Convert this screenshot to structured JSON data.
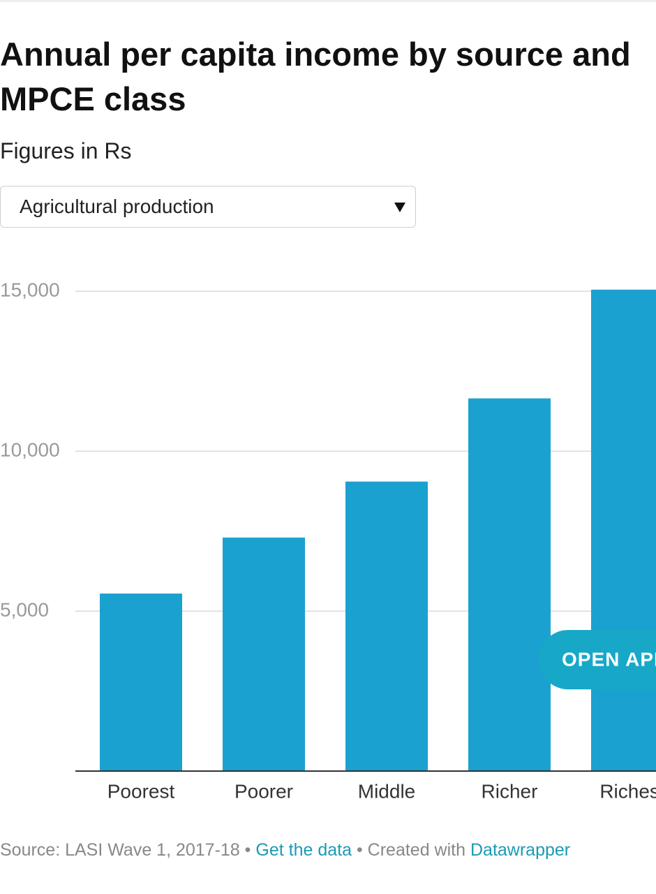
{
  "chart_data": {
    "type": "bar",
    "title": "Annual per capita income by source and MPCE class",
    "subtitle": "Figures in Rs",
    "dropdown": {
      "selected": "Agricultural production"
    },
    "categories": [
      "Poorest",
      "Poorer",
      "Middle",
      "Richer",
      "Richest"
    ],
    "values": [
      5550,
      7300,
      9050,
      11650,
      15050
    ],
    "color": "#1ba1cf",
    "ylim": [
      0,
      15000
    ],
    "yticks": [
      {
        "value": 5000,
        "label": "5,000"
      },
      {
        "value": 10000,
        "label": "10,000"
      },
      {
        "value": 15000,
        "label": "15,000"
      }
    ],
    "grid": true,
    "footer": {
      "source": "Source: LASI Wave 1, 2017-18",
      "separator": "•",
      "get_data": "Get the data",
      "credit": "Created with",
      "credit_link": "Datawrapper"
    }
  },
  "overlay_button": "OPEN APP"
}
